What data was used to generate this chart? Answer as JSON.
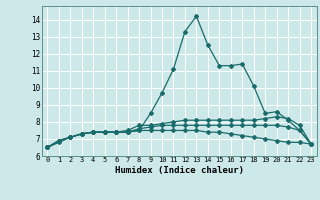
{
  "xlabel": "Humidex (Indice chaleur)",
  "bg_color": "#cce8e8",
  "grid_color": "#ffffff",
  "line_color": "#1a6b6b",
  "xlim": [
    -0.5,
    23.5
  ],
  "ylim": [
    6.0,
    14.8
  ],
  "yticks": [
    6,
    7,
    8,
    9,
    10,
    11,
    12,
    13,
    14
  ],
  "xticks": [
    0,
    1,
    2,
    3,
    4,
    5,
    6,
    7,
    8,
    9,
    10,
    11,
    12,
    13,
    14,
    15,
    16,
    17,
    18,
    19,
    20,
    21,
    22,
    23
  ],
  "series": [
    {
      "x": [
        0,
        1,
        2,
        3,
        4,
        5,
        6,
        7,
        8,
        9,
        10,
        11,
        12,
        13,
        14,
        15,
        16,
        17,
        18,
        19,
        20,
        21,
        22,
        23
      ],
      "y": [
        6.5,
        6.8,
        7.1,
        7.3,
        7.4,
        7.4,
        7.4,
        7.4,
        7.5,
        8.5,
        9.7,
        11.1,
        13.3,
        14.2,
        12.5,
        11.3,
        11.3,
        11.4,
        10.1,
        8.5,
        8.6,
        8.1,
        7.5,
        6.7
      ]
    },
    {
      "x": [
        0,
        1,
        2,
        3,
        4,
        5,
        6,
        7,
        8,
        9,
        10,
        11,
        12,
        13,
        14,
        15,
        16,
        17,
        18,
        19,
        20,
        21,
        22,
        23
      ],
      "y": [
        6.5,
        6.9,
        7.1,
        7.3,
        7.4,
        7.4,
        7.4,
        7.5,
        7.8,
        7.8,
        7.9,
        8.0,
        8.1,
        8.1,
        8.1,
        8.1,
        8.1,
        8.1,
        8.1,
        8.2,
        8.3,
        8.2,
        7.8,
        6.7
      ]
    },
    {
      "x": [
        0,
        1,
        2,
        3,
        4,
        5,
        6,
        7,
        8,
        9,
        10,
        11,
        12,
        13,
        14,
        15,
        16,
        17,
        18,
        19,
        20,
        21,
        22,
        23
      ],
      "y": [
        6.5,
        6.9,
        7.1,
        7.3,
        7.4,
        7.4,
        7.4,
        7.4,
        7.6,
        7.7,
        7.8,
        7.8,
        7.8,
        7.8,
        7.8,
        7.8,
        7.8,
        7.8,
        7.8,
        7.8,
        7.8,
        7.7,
        7.5,
        6.7
      ]
    },
    {
      "x": [
        0,
        1,
        2,
        3,
        4,
        5,
        6,
        7,
        8,
        9,
        10,
        11,
        12,
        13,
        14,
        15,
        16,
        17,
        18,
        19,
        20,
        21,
        22,
        23
      ],
      "y": [
        6.5,
        6.9,
        7.1,
        7.3,
        7.4,
        7.4,
        7.4,
        7.4,
        7.5,
        7.5,
        7.5,
        7.5,
        7.5,
        7.5,
        7.4,
        7.4,
        7.3,
        7.2,
        7.1,
        7.0,
        6.9,
        6.8,
        6.8,
        6.7
      ]
    }
  ]
}
